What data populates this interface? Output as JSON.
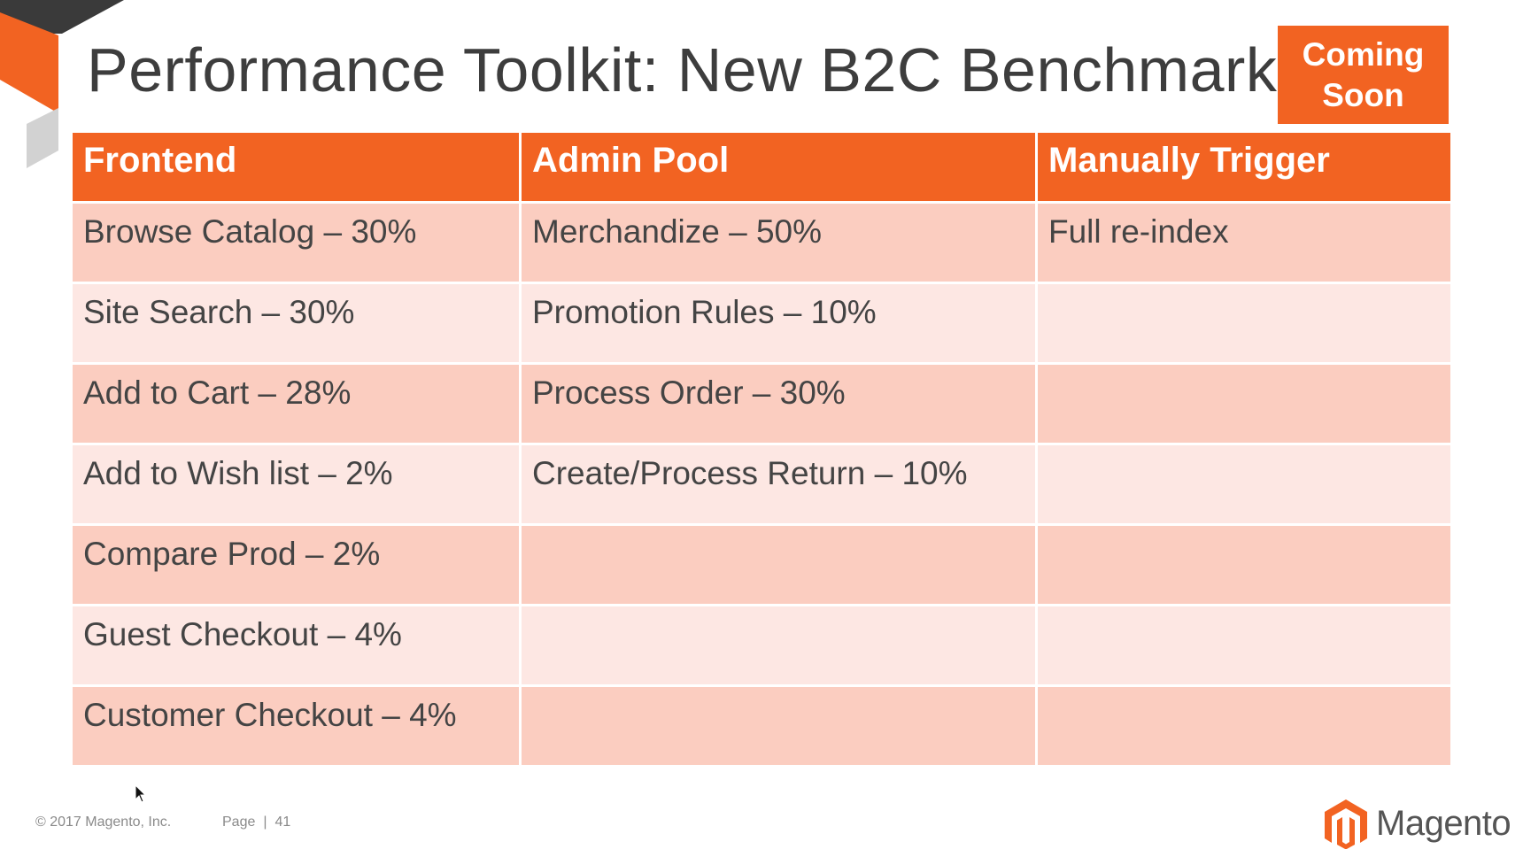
{
  "slide": {
    "title": "Performance Toolkit: New B2C Benchmark",
    "badge": {
      "line1": "Coming",
      "line2": "Soon"
    }
  },
  "table": {
    "headers": [
      "Frontend",
      "Admin Pool",
      "Manually Trigger"
    ],
    "rows": [
      [
        "Browse Catalog – 30%",
        "Merchandize – 50%",
        "Full re-index"
      ],
      [
        "Site Search – 30%",
        "Promotion Rules – 10%",
        ""
      ],
      [
        "Add to Cart – 28%",
        "Process Order – 30%",
        ""
      ],
      [
        "Add to Wish list – 2%",
        "Create/Process Return – 10%",
        ""
      ],
      [
        "Compare Prod – 2%",
        "",
        ""
      ],
      [
        "Guest Checkout – 4%",
        "",
        ""
      ],
      [
        "Customer Checkout – 4%",
        "",
        ""
      ]
    ]
  },
  "footer": {
    "copyright": "© 2017 Magento, Inc.",
    "page_label": "Page",
    "separator": "|",
    "page_number": "41",
    "brand": "Magento",
    "brand_icon": "magento-logo-icon"
  },
  "colors": {
    "accent": "#f26322",
    "row_odd": "#fbcdc0",
    "row_even": "#fde7e3",
    "title_text": "#3d3d3d"
  }
}
